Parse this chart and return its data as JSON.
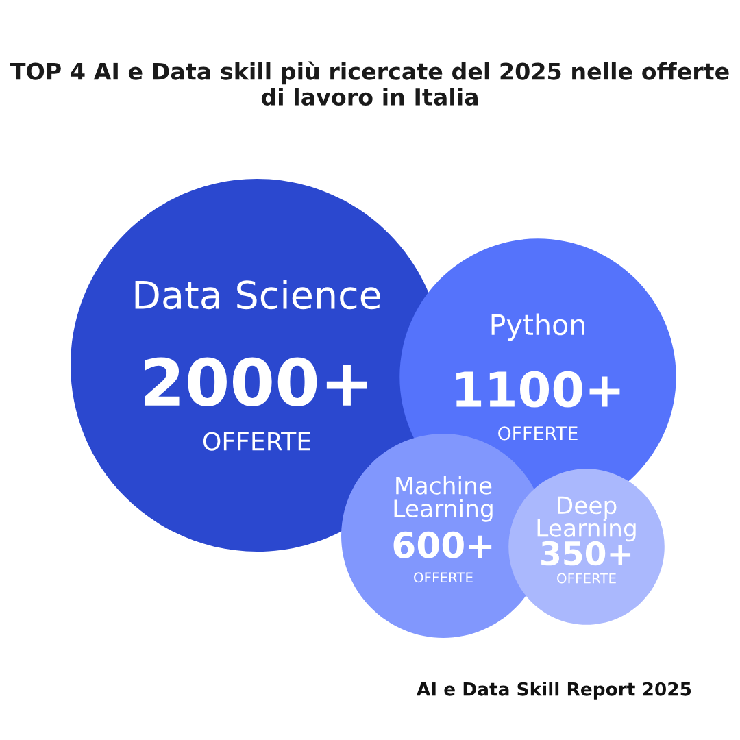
{
  "chart_data": {
    "type": "other",
    "title": "TOP 4 AI e Data skill più ricercate del 2025 nelle offerte di lavoro in Italia",
    "categories": [
      "Data Science",
      "Python",
      "Machine Learning",
      "Deep Learning"
    ],
    "values": [
      2000,
      1100,
      600,
      350
    ],
    "value_labels": [
      "2000+",
      "1100+",
      "600+",
      "350+"
    ],
    "colors": [
      "#2b48cf",
      "#5573fb",
      "#8197fd",
      "#aab8fd"
    ],
    "annotations": [
      {
        "text": "OFFERTE",
        "x": "Data Science"
      },
      {
        "text": "OFFERTE",
        "x": "Python"
      },
      {
        "text": "OFFERTE",
        "x": "Machine Learning"
      },
      {
        "text": "OFFERTE",
        "x": "Deep Learning"
      },
      "AI e Data Skill Report 2025"
    ]
  }
}
